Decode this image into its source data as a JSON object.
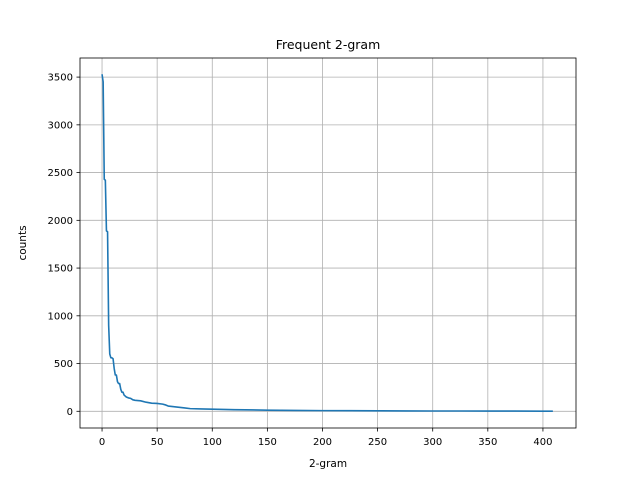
{
  "chart_data": {
    "type": "line",
    "title": "Frequent 2-gram",
    "xlabel": "2-gram",
    "ylabel": "counts",
    "xlim": [
      -20,
      430
    ],
    "ylim": [
      -175,
      3700
    ],
    "xticks": [
      0,
      50,
      100,
      150,
      200,
      250,
      300,
      350,
      400
    ],
    "yticks": [
      0,
      500,
      1000,
      1500,
      2000,
      2500,
      3000,
      3500
    ],
    "grid": true,
    "line_color": "#1f77b4",
    "series": [
      {
        "name": "counts",
        "x": [
          0,
          1,
          2,
          3,
          4,
          5,
          6,
          7,
          8,
          9,
          10,
          11,
          12,
          13,
          14,
          15,
          16,
          17,
          18,
          19,
          20,
          22,
          24,
          26,
          28,
          30,
          35,
          40,
          45,
          50,
          55,
          58,
          60,
          65,
          70,
          75,
          80,
          90,
          100,
          110,
          120,
          130,
          150,
          175,
          200,
          225,
          250,
          275,
          300,
          325,
          350,
          375,
          400,
          409
        ],
        "y": [
          3530,
          3450,
          2430,
          2420,
          1890,
          1880,
          900,
          600,
          560,
          560,
          550,
          450,
          380,
          380,
          310,
          290,
          290,
          230,
          200,
          200,
          170,
          150,
          140,
          135,
          120,
          115,
          110,
          95,
          85,
          82,
          75,
          65,
          55,
          48,
          42,
          35,
          28,
          25,
          22,
          19,
          17,
          15,
          12,
          9,
          7,
          6,
          5,
          4,
          3,
          3,
          2,
          2,
          1,
          1
        ]
      }
    ]
  }
}
